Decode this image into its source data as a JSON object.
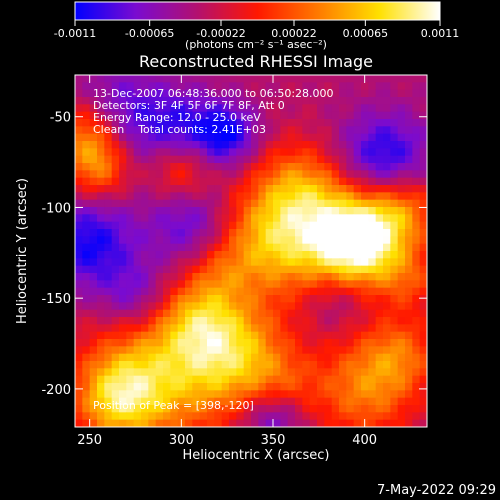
{
  "colorbar": {
    "ticks": [
      "-0.0011",
      "-0.00065",
      "-0.00022",
      "0.00022",
      "0.00065",
      "0.0011"
    ],
    "tick_values": [
      -0.0011,
      -0.00065,
      -0.00022,
      0.00022,
      0.00065,
      0.0011
    ],
    "range": [
      -0.0011,
      0.0011
    ],
    "unit_label": "(photons cm⁻² s⁻¹ asec⁻²)",
    "colors": [
      "#0000ff",
      "#7a0bd0",
      "#b21070",
      "#ff1800",
      "#ff7a00",
      "#ffe000",
      "#ffffff"
    ]
  },
  "chart_data": {
    "type": "heatmap",
    "title": "Reconstructed RHESSI Image",
    "xlabel": "Heliocentric X (arcsec)",
    "ylabel": "Heliocentric Y (arcsec)",
    "xlim": [
      242,
      434
    ],
    "ylim": [
      -221,
      -27
    ],
    "xticks": [
      "250",
      "300",
      "350",
      "400"
    ],
    "xtick_values": [
      250,
      300,
      350,
      400
    ],
    "yticks": [
      "-50",
      "-100",
      "-150",
      "-200"
    ],
    "ytick_values": [
      -50,
      -100,
      -150,
      -200
    ],
    "annotations": [
      "13-Dec-2007 06:48:36.000 to 06:50:28.000",
      "Detectors: 3F 4F 5F 6F 7F 8F, Att 0",
      "Energy Range: 12.0 - 25.0 keV",
      "Clean    Total counts: 2.41E+03"
    ],
    "peak_label": "Position of Peak = [398,-120]",
    "peak": [
      398,
      -120
    ],
    "sources": [
      {
        "x": 398,
        "y": -120,
        "amp": 0.0011,
        "r": 16
      },
      {
        "x": 380,
        "y": -112,
        "amp": 0.00085,
        "r": 24
      },
      {
        "x": 345,
        "y": -120,
        "amp": 0.0007,
        "r": 20
      },
      {
        "x": 420,
        "y": -100,
        "amp": 0.0007,
        "r": 15
      },
      {
        "x": 362,
        "y": -88,
        "amp": 0.0005,
        "r": 18
      },
      {
        "x": 300,
        "y": -80,
        "amp": 0.0005,
        "r": 12
      },
      {
        "x": 250,
        "y": -60,
        "amp": 0.0009,
        "r": 14
      },
      {
        "x": 255,
        "y": -80,
        "amp": 0.0006,
        "r": 12
      },
      {
        "x": 290,
        "y": -190,
        "amp": 0.0009,
        "r": 28
      },
      {
        "x": 330,
        "y": -180,
        "amp": 0.0008,
        "r": 20
      },
      {
        "x": 265,
        "y": -205,
        "amp": 0.0008,
        "r": 16
      },
      {
        "x": 310,
        "y": -160,
        "amp": 0.0005,
        "r": 15
      },
      {
        "x": 400,
        "y": -200,
        "amp": 0.0007,
        "r": 20
      },
      {
        "x": 420,
        "y": -180,
        "amp": 0.0005,
        "r": 15
      },
      {
        "x": 355,
        "y": -200,
        "amp": 0.0004,
        "r": 14
      },
      {
        "x": 425,
        "y": -140,
        "amp": 0.0004,
        "r": 12
      },
      {
        "x": 320,
        "y": -135,
        "amp": 0.0003,
        "r": 12
      },
      {
        "x": 265,
        "y": -50,
        "amp": -0.0006,
        "r": 18
      },
      {
        "x": 300,
        "y": -55,
        "amp": -0.0005,
        "r": 15
      },
      {
        "x": 325,
        "y": -60,
        "amp": -0.0007,
        "r": 12
      },
      {
        "x": 250,
        "y": -120,
        "amp": -0.0007,
        "r": 18
      },
      {
        "x": 275,
        "y": -150,
        "amp": -0.0005,
        "r": 14
      },
      {
        "x": 410,
        "y": -75,
        "amp": -0.0008,
        "r": 18
      },
      {
        "x": 305,
        "y": -110,
        "amp": -0.0005,
        "r": 16
      },
      {
        "x": 350,
        "y": -215,
        "amp": -0.0006,
        "r": 12
      },
      {
        "x": 385,
        "y": -150,
        "amp": -0.0003,
        "r": 12
      }
    ]
  },
  "footer": {
    "timestamp": "7-May-2022 09:29"
  }
}
